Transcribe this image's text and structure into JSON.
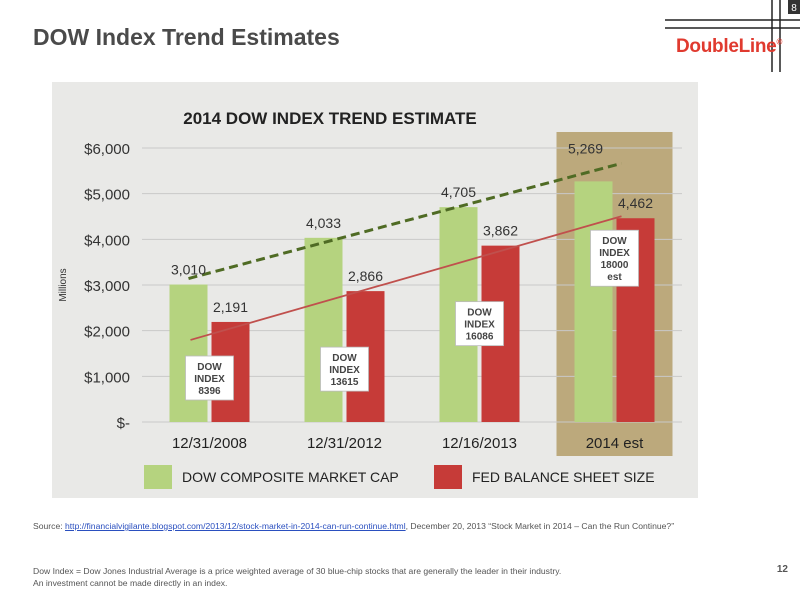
{
  "page": {
    "title": "DOW Index Trend Estimates",
    "page_number": "12",
    "source_prefix": "Source: ",
    "source_link": "http://financialvigilante.blogspot.com/2013/12/stock-market-in-2014-can-run-continue.html",
    "source_suffix": ", December 20, 2013 “Stock Market in 2014 – Can the Run Continue?”",
    "footnote_line1": "Dow Index = Dow Jones Industrial Average is a price weighted average of 30 blue-chip stocks that are generally the leader in their industry.",
    "footnote_line2": "An investment cannot be made directly in an index."
  },
  "logo": {
    "text_main": "DoubleLine",
    "mark": "®",
    "color": "#e03a2f",
    "corner_mark": "8"
  },
  "chart_data": {
    "type": "bar",
    "title": "2014 DOW INDEX TREND ESTIMATE",
    "ylabel": "Millions",
    "ylim": [
      0,
      6000
    ],
    "y_ticks": [
      {
        "value": 0,
        "label": "$-"
      },
      {
        "value": 1000,
        "label": "$1,000"
      },
      {
        "value": 2000,
        "label": "$2,000"
      },
      {
        "value": 3000,
        "label": "$3,000"
      },
      {
        "value": 4000,
        "label": "$4,000"
      },
      {
        "value": 5000,
        "label": "$5,000"
      },
      {
        "value": 6000,
        "label": "$6,000"
      }
    ],
    "categories": [
      "12/31/2008",
      "12/31/2012",
      "12/16/2013",
      "2014 est"
    ],
    "series": [
      {
        "name": "DOW COMPOSITE MARKET CAP",
        "color": "#b5d37f",
        "values": [
          3010,
          4033,
          4705,
          5269
        ],
        "labels": [
          "3,010",
          "4,033",
          "4,705",
          "5,269"
        ]
      },
      {
        "name": "FED BALANCE SHEET SIZE",
        "color": "#c63b38",
        "values": [
          2191,
          2866,
          3862,
          4462
        ],
        "labels": [
          "2,191",
          "2,866",
          "3,862",
          "4,462"
        ]
      }
    ],
    "trendlines": [
      {
        "series": "DOW COMPOSITE MARKET CAP",
        "style": "dashed",
        "color": "#4f6b24"
      },
      {
        "series": "FED BALANCE SHEET SIZE",
        "style": "solid",
        "color": "#c0504d"
      }
    ],
    "annotations": [
      {
        "category": "12/31/2008",
        "lines": [
          "DOW",
          "INDEX",
          "8396"
        ]
      },
      {
        "category": "12/31/2012",
        "lines": [
          "DOW",
          "INDEX",
          "13615"
        ]
      },
      {
        "category": "12/16/2013",
        "lines": [
          "DOW",
          "INDEX",
          "16086"
        ]
      },
      {
        "category": "2014 est",
        "lines": [
          "DOW",
          "INDEX",
          "18000",
          "est"
        ]
      }
    ],
    "highlight_category": "2014 est",
    "grid": true,
    "legend_position": "bottom"
  }
}
